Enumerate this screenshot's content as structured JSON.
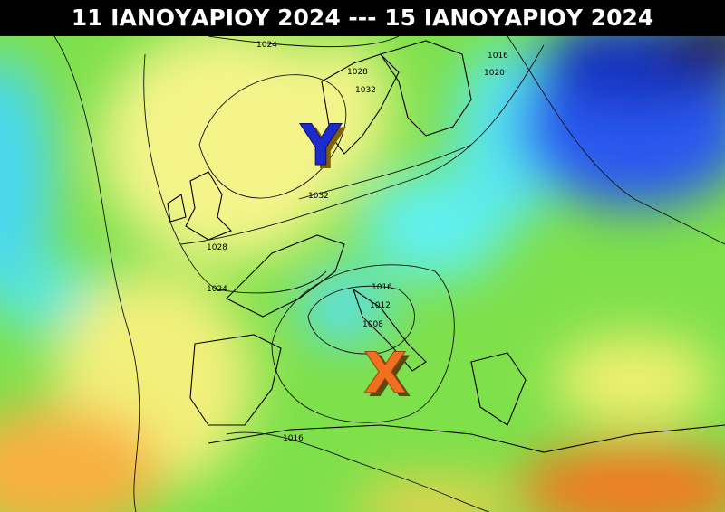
{
  "header": {
    "title": "11 ΙΑΝΟΥΑΡΙΟΥ 2024 --- 15 ΙΑΝΟΥΑΡΙΟΥ 2024"
  },
  "markers": [
    {
      "label": "Y"
    },
    {
      "label": "X"
    }
  ],
  "isobar_labels": [
    "1024",
    "1028",
    "1032",
    "1016",
    "1020",
    "1032",
    "1028",
    "1024",
    "1016",
    "1012",
    "1008",
    "1016"
  ]
}
